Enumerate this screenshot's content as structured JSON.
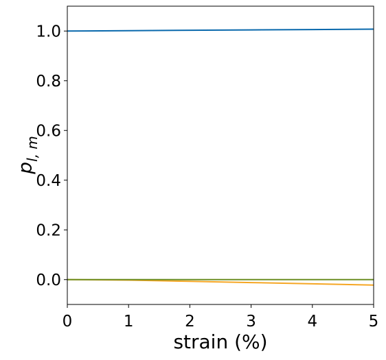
{
  "chart_data": {
    "type": "line",
    "xlabel": "strain (%)",
    "ylabel": {
      "main": "p",
      "sub": "l, m"
    },
    "xlim": [
      0,
      5
    ],
    "ylim": [
      -0.1,
      1.1
    ],
    "xticks": [
      "0",
      "1",
      "2",
      "3",
      "4",
      "5"
    ],
    "yticks": [
      "0.0",
      "0.2",
      "0.4",
      "0.6",
      "0.8",
      "1.0"
    ],
    "grid": false,
    "series": [
      {
        "color": "#0868ac",
        "x": [
          0,
          1,
          2,
          3,
          4,
          5
        ],
        "y": [
          1.0,
          1.0015,
          1.003,
          1.0045,
          1.006,
          1.0075
        ]
      },
      {
        "color": "#f5a623",
        "x": [
          0,
          1,
          2,
          3,
          4,
          5
        ],
        "y": [
          0.0,
          -0.002,
          -0.007,
          -0.012,
          -0.017,
          -0.022
        ]
      },
      {
        "color": "#6b8e23",
        "x": [
          0,
          1,
          2,
          3,
          4,
          5
        ],
        "y": [
          0.0,
          0.0,
          0.0,
          0.0,
          0.0,
          0.0
        ]
      }
    ]
  }
}
